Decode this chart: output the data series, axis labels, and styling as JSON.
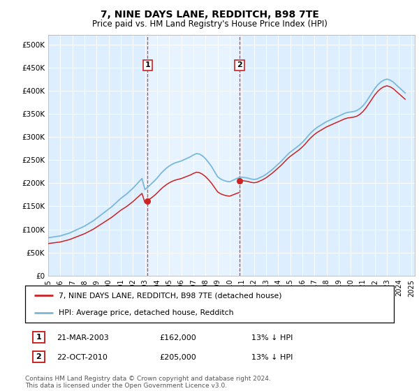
{
  "title": "7, NINE DAYS LANE, REDDITCH, B98 7TE",
  "subtitle": "Price paid vs. HM Land Registry's House Price Index (HPI)",
  "hpi_label": "HPI: Average price, detached house, Redditch",
  "property_label": "7, NINE DAYS LANE, REDDITCH, B98 7TE (detached house)",
  "footnote": "Contains HM Land Registry data © Crown copyright and database right 2024.\nThis data is licensed under the Open Government Licence v3.0.",
  "annotation1": {
    "label": "1",
    "date": "21-MAR-2003",
    "price": 162000,
    "hpi_diff": "13% ↓ HPI",
    "x_year": 2003.22
  },
  "annotation2": {
    "label": "2",
    "date": "22-OCT-2010",
    "price": 205000,
    "hpi_diff": "13% ↓ HPI",
    "x_year": 2010.81
  },
  "hpi_color": "#7ab8d9",
  "property_color": "#cc2222",
  "dashed_line_color": "#cc2222",
  "background_color": "#ddeeff",
  "highlight_color": "#c5d9ee",
  "ylim": [
    0,
    520000
  ],
  "xlim_start": 1995.0,
  "xlim_end": 2025.3,
  "yticks": [
    0,
    50000,
    100000,
    150000,
    200000,
    250000,
    300000,
    350000,
    400000,
    450000,
    500000
  ],
  "ytick_labels": [
    "£0",
    "£50K",
    "£100K",
    "£150K",
    "£200K",
    "£250K",
    "£300K",
    "£350K",
    "£400K",
    "£450K",
    "£500K"
  ],
  "xtick_years": [
    1995,
    1996,
    1997,
    1998,
    1999,
    2000,
    2001,
    2002,
    2003,
    2004,
    2005,
    2006,
    2007,
    2008,
    2009,
    2010,
    2011,
    2012,
    2013,
    2014,
    2015,
    2016,
    2017,
    2018,
    2019,
    2020,
    2021,
    2022,
    2023,
    2024,
    2025
  ],
  "hpi_years": [
    1995.0,
    1995.25,
    1995.5,
    1995.75,
    1996.0,
    1996.25,
    1996.5,
    1996.75,
    1997.0,
    1997.25,
    1997.5,
    1997.75,
    1998.0,
    1998.25,
    1998.5,
    1998.75,
    1999.0,
    1999.25,
    1999.5,
    1999.75,
    2000.0,
    2000.25,
    2000.5,
    2000.75,
    2001.0,
    2001.25,
    2001.5,
    2001.75,
    2002.0,
    2002.25,
    2002.5,
    2002.75,
    2003.0,
    2003.25,
    2003.5,
    2003.75,
    2004.0,
    2004.25,
    2004.5,
    2004.75,
    2005.0,
    2005.25,
    2005.5,
    2005.75,
    2006.0,
    2006.25,
    2006.5,
    2006.75,
    2007.0,
    2007.25,
    2007.5,
    2007.75,
    2008.0,
    2008.25,
    2008.5,
    2008.75,
    2009.0,
    2009.25,
    2009.5,
    2009.75,
    2010.0,
    2010.25,
    2010.5,
    2010.75,
    2011.0,
    2011.25,
    2011.5,
    2011.75,
    2012.0,
    2012.25,
    2012.5,
    2012.75,
    2013.0,
    2013.25,
    2013.5,
    2013.75,
    2014.0,
    2014.25,
    2014.5,
    2014.75,
    2015.0,
    2015.25,
    2015.5,
    2015.75,
    2016.0,
    2016.25,
    2016.5,
    2016.75,
    2017.0,
    2017.25,
    2017.5,
    2017.75,
    2018.0,
    2018.25,
    2018.5,
    2018.75,
    2019.0,
    2019.25,
    2019.5,
    2019.75,
    2020.0,
    2020.25,
    2020.5,
    2020.75,
    2021.0,
    2021.25,
    2021.5,
    2021.75,
    2022.0,
    2022.25,
    2022.5,
    2022.75,
    2023.0,
    2023.25,
    2023.5,
    2023.75,
    2024.0,
    2024.25,
    2024.5
  ],
  "hpi_values": [
    82000,
    83000,
    84000,
    85000,
    86000,
    88000,
    90000,
    92000,
    95000,
    98000,
    101000,
    104000,
    107000,
    111000,
    115000,
    119000,
    124000,
    129000,
    134000,
    139000,
    144000,
    149000,
    155000,
    161000,
    167000,
    172000,
    177000,
    183000,
    189000,
    196000,
    203000,
    210000,
    186000,
    192000,
    198000,
    204000,
    211000,
    219000,
    226000,
    232000,
    237000,
    241000,
    244000,
    246000,
    248000,
    251000,
    254000,
    257000,
    261000,
    264000,
    263000,
    259000,
    253000,
    245000,
    236000,
    225000,
    214000,
    209000,
    206000,
    204000,
    203000,
    206000,
    209000,
    212000,
    213000,
    212000,
    211000,
    209000,
    208000,
    209000,
    212000,
    215000,
    219000,
    224000,
    229000,
    235000,
    241000,
    247000,
    254000,
    261000,
    267000,
    272000,
    277000,
    282000,
    288000,
    295000,
    303000,
    310000,
    316000,
    321000,
    325000,
    329000,
    333000,
    336000,
    339000,
    342000,
    345000,
    348000,
    351000,
    353000,
    354000,
    355000,
    357000,
    361000,
    367000,
    375000,
    385000,
    395000,
    405000,
    413000,
    419000,
    423000,
    425000,
    423000,
    419000,
    413000,
    407000,
    401000,
    395000
  ],
  "prop_hpi_ratio": 0.87
}
